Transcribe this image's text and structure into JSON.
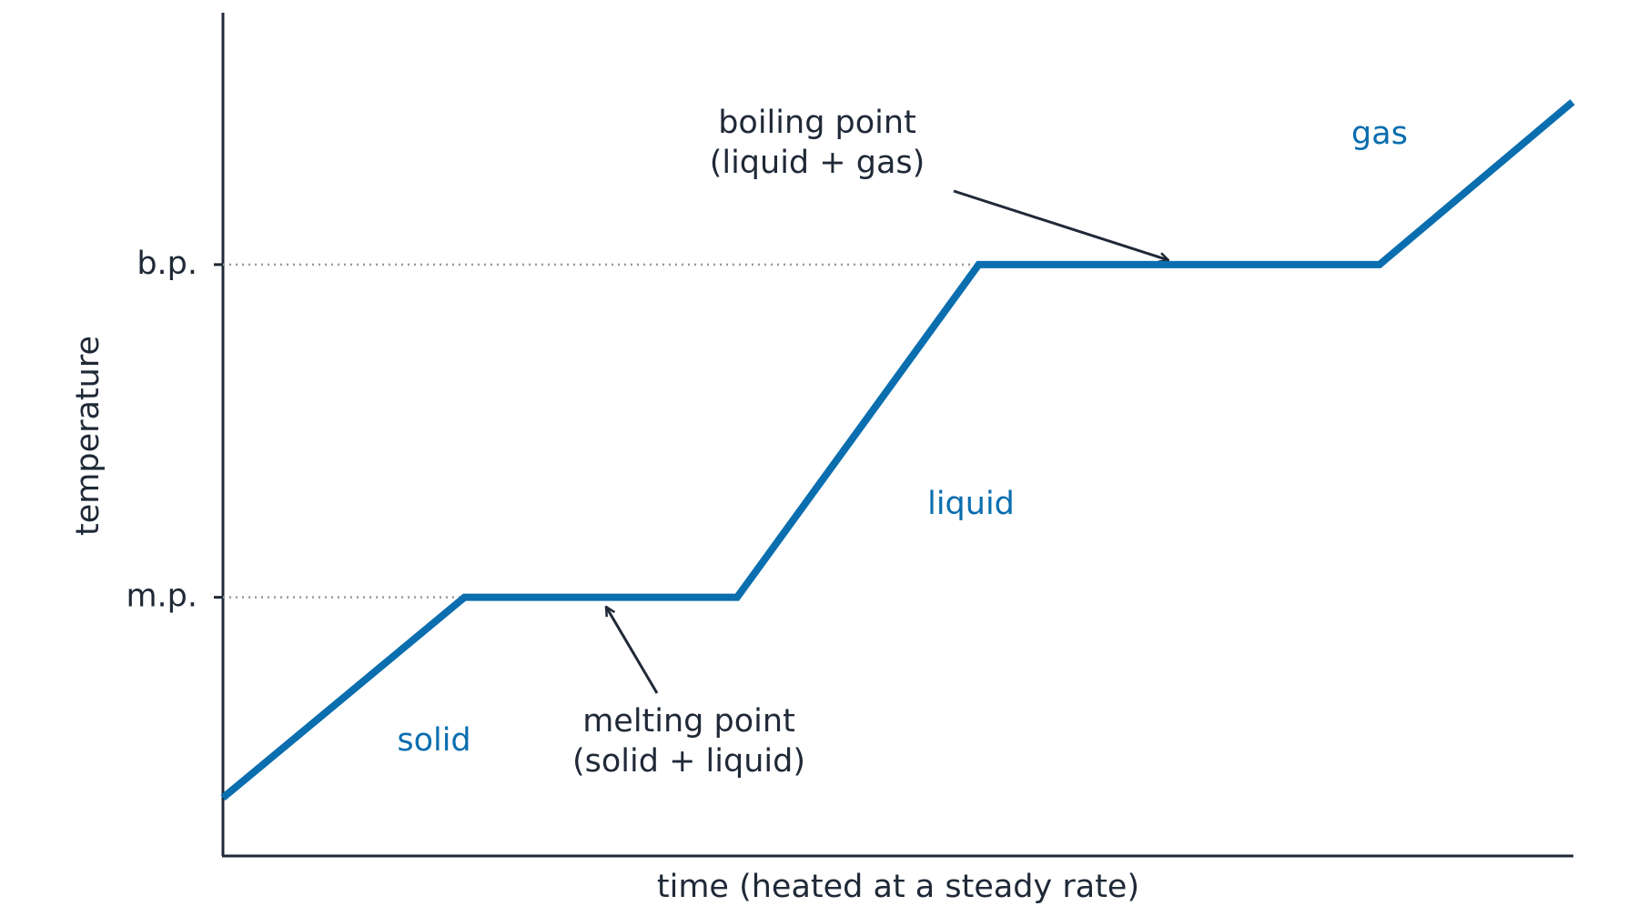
{
  "chart_data": {
    "type": "line",
    "xlabel": "time (heated at a steady rate)",
    "ylabel": "temperature",
    "x": [
      0,
      17.9,
      38.1,
      56.0,
      85.7,
      100
    ],
    "values": [
      6.8,
      30.6,
      30.6,
      70.1,
      70.1,
      89.4
    ],
    "color": "#0a6eaf",
    "xlim": [
      0,
      100
    ],
    "ylim": [
      0,
      100
    ],
    "yticks": [
      {
        "value": 30.6,
        "label": "m.p."
      },
      {
        "value": 70.1,
        "label": "b.p."
      }
    ],
    "phase_labels": [
      "solid",
      "liquid",
      "gas"
    ],
    "callouts": [
      {
        "lines": [
          "boiling point",
          "(liquid + gas)"
        ]
      },
      {
        "lines": [
          "melting point",
          "(solid + liquid)"
        ]
      }
    ]
  }
}
